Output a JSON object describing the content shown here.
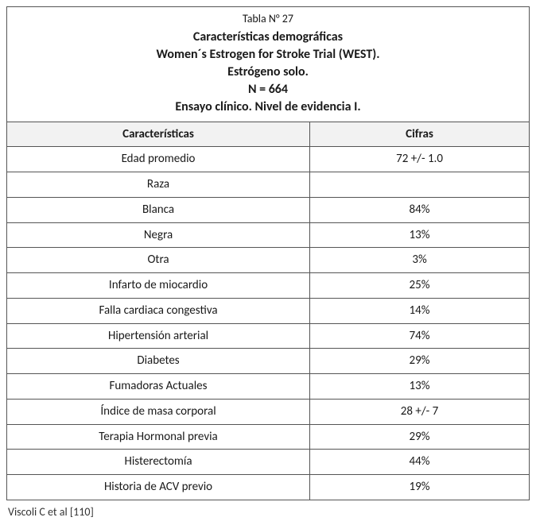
{
  "table": {
    "number_line": "Tabla N°  27",
    "title_lines": [
      "Características demográficas",
      "Women´s Estrogen for Stroke Trial (WEST).",
      "Estrógeno solo.",
      "N = 664",
      "Ensayo clínico. Nivel de evidencia I."
    ],
    "columns": [
      "Características",
      "Cifras"
    ],
    "rows": [
      {
        "label": "Edad promedio",
        "value": "72 +/- 1.0"
      },
      {
        "label": "Raza",
        "value": ""
      },
      {
        "label": "Blanca",
        "value": "84%"
      },
      {
        "label": "Negra",
        "value": "13%"
      },
      {
        "label": "Otra",
        "value": "3%"
      },
      {
        "label": "Infarto de miocardio",
        "value": "25%"
      },
      {
        "label": "Falla cardiaca congestiva",
        "value": "14%"
      },
      {
        "label": "Hipertensión arterial",
        "value": "74%"
      },
      {
        "label": "Diabetes",
        "value": "29%"
      },
      {
        "label": "Fumadoras Actuales",
        "value": "13%"
      },
      {
        "label": "Índice de masa corporal",
        "value": "28 +/- 7"
      },
      {
        "label": "Terapia Hormonal previa",
        "value": "29%"
      },
      {
        "label": "Histerectomía",
        "value": "44%"
      },
      {
        "label": "Historia de ACV previo",
        "value": "19%"
      }
    ]
  },
  "footnote": "Viscoli C et al  [110]",
  "style": {
    "border_color": "#555555",
    "header_bg": "#f2f2f2",
    "body_bg": "#ffffff",
    "text_color": "#1a1a1a",
    "font_family": "Gill Sans / Calibri",
    "title_bold_fontsize_pt": 12,
    "body_fontsize_pt": 11,
    "col_widths_pct": [
      58,
      42
    ]
  }
}
